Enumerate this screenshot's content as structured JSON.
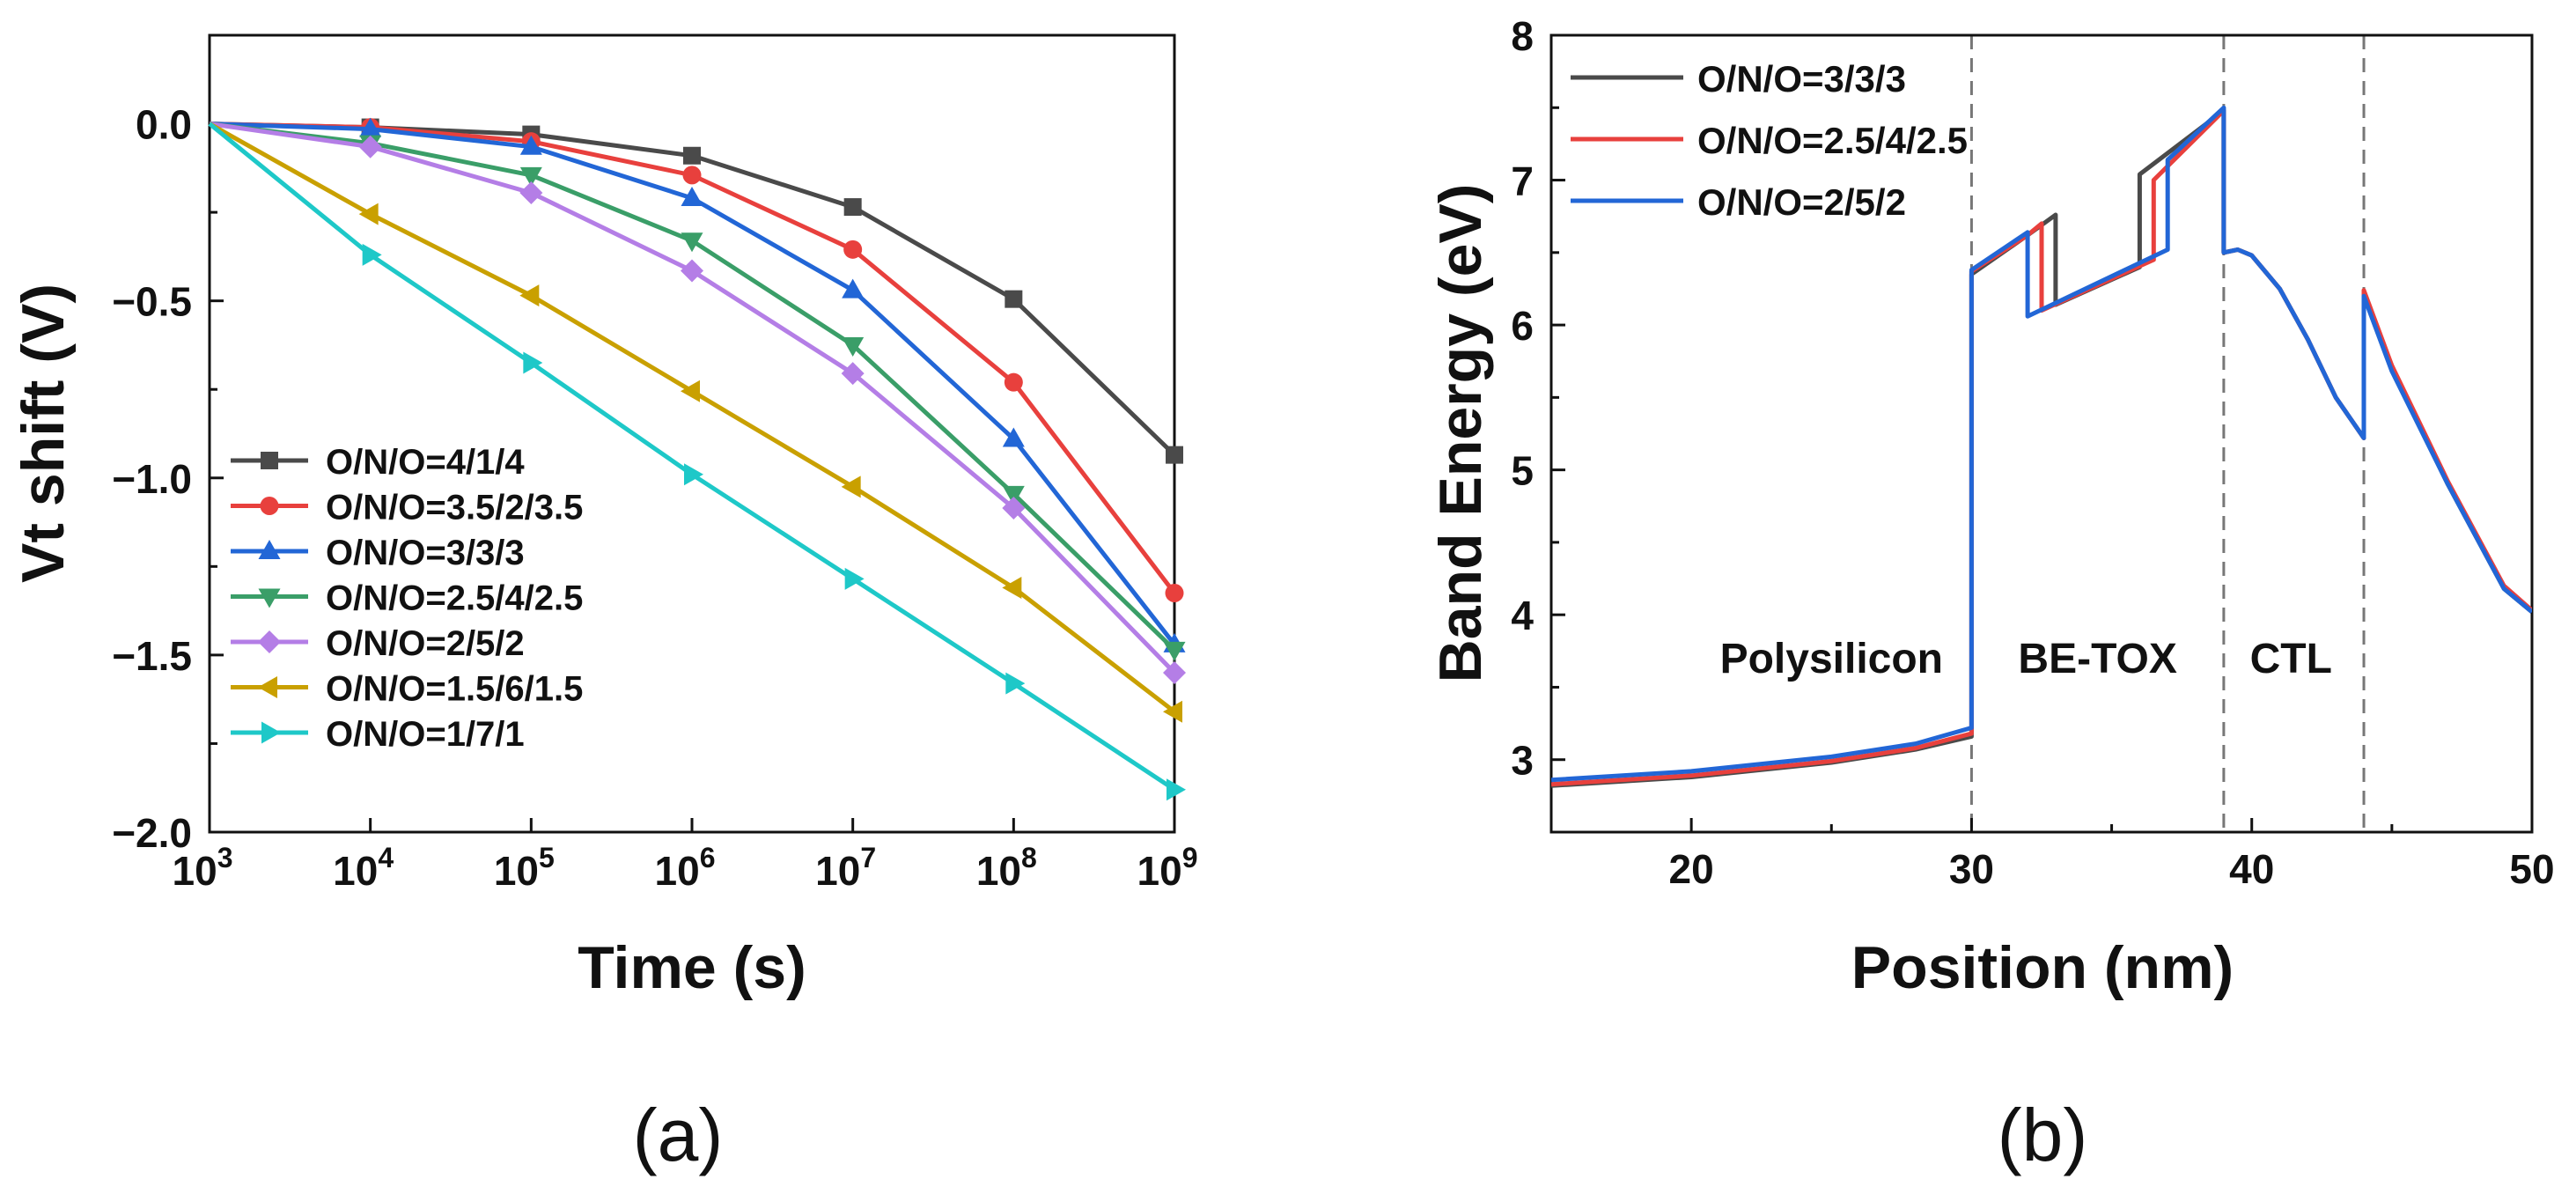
{
  "chart_data": [
    {
      "type": "line",
      "caption": "(a)",
      "xlabel": "Time (s)",
      "ylabel": "Vt shift (V)",
      "x_scale": "log",
      "x": [
        1000,
        10000,
        100000,
        1000000,
        10000000,
        100000000,
        1000000000
      ],
      "xtick_base": "10",
      "xtick_exponents": [
        "3",
        "4",
        "5",
        "6",
        "7",
        "8",
        "9"
      ],
      "xlim": [
        1000,
        1000000000
      ],
      "ylim": [
        -2.0,
        0.25
      ],
      "yticks": [
        0.0,
        -0.5,
        -1.0,
        -1.5,
        -2.0
      ],
      "ytick_labels": [
        "0.0",
        "−0.5",
        "−1.0",
        "−1.5",
        "−2.0"
      ],
      "legend_position": "bottom-left",
      "series": [
        {
          "name": "O/N/O=4/1/4",
          "color": "#4a4a4a",
          "marker": "square",
          "values": [
            0.0,
            -0.01,
            -0.03,
            -0.09,
            -0.235,
            -0.495,
            -0.935
          ]
        },
        {
          "name": "O/N/O=3.5/2/3.5",
          "color": "#e8403d",
          "marker": "circle",
          "values": [
            0.0,
            -0.01,
            -0.05,
            -0.145,
            -0.355,
            -0.73,
            -1.325
          ]
        },
        {
          "name": "O/N/O=3/3/3",
          "color": "#2266d6",
          "marker": "triangle-up",
          "values": [
            0.0,
            -0.015,
            -0.065,
            -0.21,
            -0.47,
            -0.89,
            -1.47
          ]
        },
        {
          "name": "O/N/O=2.5/4/2.5",
          "color": "#3a9e68",
          "marker": "triangle-down",
          "values": [
            0.0,
            -0.055,
            -0.145,
            -0.33,
            -0.625,
            -1.045,
            -1.485
          ]
        },
        {
          "name": "O/N/O=2/5/2",
          "color": "#b47ee6",
          "marker": "diamond",
          "values": [
            0.0,
            -0.065,
            -0.195,
            -0.415,
            -0.705,
            -1.085,
            -1.55
          ]
        },
        {
          "name": "O/N/O=1.5/6/1.5",
          "color": "#c9a000",
          "marker": "triangle-left",
          "values": [
            0.0,
            -0.255,
            -0.485,
            -0.755,
            -1.025,
            -1.31,
            -1.66
          ]
        },
        {
          "name": "O/N/O=1/7/1",
          "color": "#1ec8c8",
          "marker": "triangle-right",
          "values": [
            0.0,
            -0.37,
            -0.675,
            -0.99,
            -1.285,
            -1.58,
            -1.88
          ]
        }
      ]
    },
    {
      "type": "line",
      "caption": "(b)",
      "xlabel": "Position (nm)",
      "ylabel": "Band Energy (eV)",
      "xlim": [
        15,
        50
      ],
      "ylim": [
        2.5,
        8
      ],
      "xticks": [
        20,
        30,
        40,
        50
      ],
      "xtick_labels": [
        "20",
        "30",
        "40",
        "50"
      ],
      "yticks": [
        3,
        4,
        5,
        6,
        7,
        8
      ],
      "ytick_labels": [
        "3",
        "4",
        "5",
        "6",
        "7",
        "8"
      ],
      "legend_position": "top-left",
      "vertical_dashed_lines_x": [
        30,
        39,
        44
      ],
      "region_labels": [
        {
          "text": "Polysilicon",
          "x": 25,
          "y": 3.6
        },
        {
          "text": "BE-TOX",
          "x": 34.5,
          "y": 3.6
        },
        {
          "text": "CTL",
          "x": 41.4,
          "y": 3.6
        }
      ],
      "series": [
        {
          "name": "O/N/O=3/3/3",
          "color": "#4a4a4a",
          "x": [
            15,
            20,
            25,
            28,
            30,
            30,
            32,
            33,
            33,
            36,
            36,
            39,
            39,
            39.5,
            40,
            41,
            42,
            43,
            44,
            44,
            45,
            47,
            49,
            50
          ],
          "y": [
            2.82,
            2.88,
            2.98,
            3.07,
            3.16,
            6.35,
            6.62,
            6.76,
            6.14,
            6.4,
            7.04,
            7.48,
            6.5,
            6.52,
            6.48,
            6.25,
            5.9,
            5.5,
            5.22,
            6.22,
            5.7,
            4.9,
            4.18,
            4.02
          ]
        },
        {
          "name": "O/N/O=2.5/4/2.5",
          "color": "#e8403d",
          "x": [
            15,
            20,
            25,
            28,
            30,
            30,
            32,
            32.5,
            32.5,
            36.5,
            36.5,
            39,
            39,
            39.5,
            40,
            41,
            42,
            43,
            44,
            44,
            45,
            47,
            49,
            50
          ],
          "y": [
            2.83,
            2.89,
            2.99,
            3.08,
            3.18,
            6.37,
            6.62,
            6.7,
            6.1,
            6.45,
            7.0,
            7.48,
            6.5,
            6.52,
            6.48,
            6.25,
            5.9,
            5.5,
            5.22,
            6.24,
            5.72,
            4.92,
            4.2,
            4.03
          ]
        },
        {
          "name": "O/N/O=2/5/2",
          "color": "#2266d6",
          "x": [
            15,
            20,
            25,
            28,
            30,
            30,
            32,
            32,
            37,
            37,
            39,
            39,
            39.5,
            40,
            41,
            42,
            43,
            44,
            44,
            45,
            47,
            49,
            50
          ],
          "y": [
            2.86,
            2.92,
            3.02,
            3.11,
            3.22,
            6.38,
            6.64,
            6.06,
            6.52,
            7.14,
            7.5,
            6.5,
            6.52,
            6.48,
            6.25,
            5.9,
            5.5,
            5.22,
            6.2,
            5.68,
            4.9,
            4.18,
            4.02
          ]
        }
      ]
    }
  ]
}
